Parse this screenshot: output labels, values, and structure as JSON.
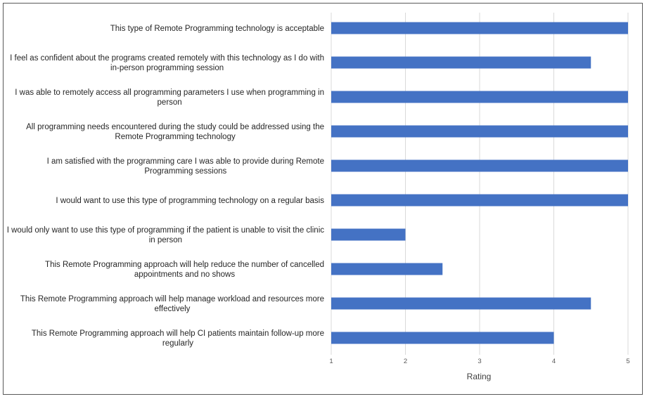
{
  "chart_data": {
    "type": "bar",
    "orientation": "horizontal",
    "title": "",
    "xlabel": "Rating",
    "ylabel": "",
    "xlim": [
      1,
      5
    ],
    "x_ticks": [
      "1",
      "2",
      "3",
      "4",
      "5"
    ],
    "grid": true,
    "bar_color": "#4472C4",
    "categories": [
      [
        "This type of Remote Programming technology is acceptable"
      ],
      [
        "I feel as confident about the programs created remotely with this technology as I do with",
        "in-person programming session"
      ],
      [
        "I was able to remotely access all programming parameters I use when programming in",
        "person"
      ],
      [
        "All programming needs encountered during the study could be addressed using the",
        "Remote Programming technology"
      ],
      [
        "I am satisfied with the programming care I was able to provide during Remote",
        "Programming sessions"
      ],
      [
        "I would want to use this type of programming technology on a regular basis"
      ],
      [
        "I would only want to use this type of programming if the patient is unable to visit the clinic",
        "in person"
      ],
      [
        "This Remote Programming approach will help reduce the number of cancelled",
        "appointments and no shows"
      ],
      [
        "This Remote Programming approach will help manage workload and resources more",
        "effectively"
      ],
      [
        "This Remote Programming approach will help CI patients maintain follow-up more",
        "regularly"
      ]
    ],
    "values": [
      5,
      4.5,
      5,
      5,
      5,
      5,
      2,
      2.5,
      4.5,
      4
    ]
  }
}
